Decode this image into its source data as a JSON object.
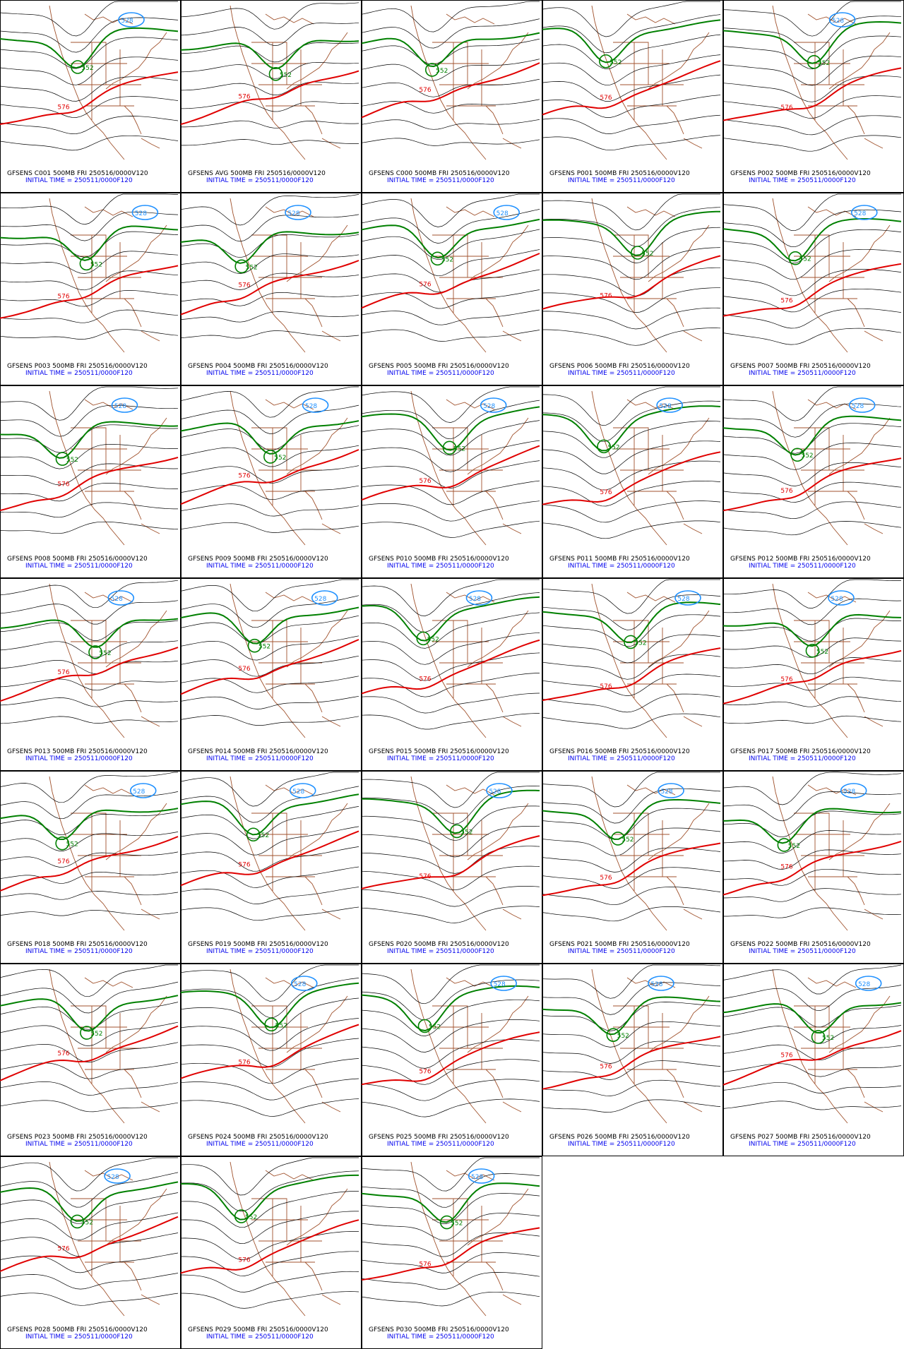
{
  "panels": [
    {
      "title": "GFSENS C001 500MB FRI 250516/0000V120",
      "initial": "INITIAL TIME = 250511/0000F120",
      "contour_labels": [
        "552",
        "576",
        "528"
      ]
    },
    {
      "title": "GFSENS AVG 500MB FRI 250516/0000V120",
      "initial": "INITIAL TIME = 250511/0000F120",
      "contour_labels": [
        "552",
        "576"
      ]
    },
    {
      "title": "GFSENS C000 500MB FRI 250516/0000V120",
      "initial": "INITIAL TIME = 250511/0000F120",
      "contour_labels": [
        "552",
        "576"
      ]
    },
    {
      "title": "GFSENS P001 500MB FRI 250516/0000V120",
      "initial": "INITIAL TIME = 250511/0000F120",
      "contour_labels": [
        "552",
        "576"
      ]
    },
    {
      "title": "GFSENS P002 500MB FRI 250516/0000V120",
      "initial": "INITIAL TIME = 250511/0000F120",
      "contour_labels": [
        "552",
        "576",
        "528"
      ]
    },
    {
      "title": "GFSENS P003 500MB FRI 250516/0000V120",
      "initial": "INITIAL TIME = 250511/0000F120",
      "contour_labels": [
        "552",
        "576",
        "528"
      ]
    },
    {
      "title": "GFSENS P004 500MB FRI 250516/0000V120",
      "initial": "INITIAL TIME = 250511/0000F120",
      "contour_labels": [
        "552",
        "576",
        "528"
      ]
    },
    {
      "title": "GFSENS P005 500MB FRI 250516/0000V120",
      "initial": "INITIAL TIME = 250511/0000F120",
      "contour_labels": [
        "552",
        "576",
        "528"
      ]
    },
    {
      "title": "GFSENS P006 500MB FRI 250516/0000V120",
      "initial": "INITIAL TIME = 250511/0000F120",
      "contour_labels": [
        "552",
        "576"
      ]
    },
    {
      "title": "GFSENS P007 500MB FRI 250516/0000V120",
      "initial": "INITIAL TIME = 250511/0000F120",
      "contour_labels": [
        "552",
        "576",
        "528"
      ]
    },
    {
      "title": "GFSENS P008 500MB FRI 250516/0000V120",
      "initial": "INITIAL TIME = 250511/0000F120",
      "contour_labels": [
        "552",
        "576",
        "528"
      ]
    },
    {
      "title": "GFSENS P009 500MB FRI 250516/0000V120",
      "initial": "INITIAL TIME = 250511/0000F120",
      "contour_labels": [
        "552",
        "576",
        "528"
      ]
    },
    {
      "title": "GFSENS P010 500MB FRI 250516/0000V120",
      "initial": "INITIAL TIME = 250511/0000F120",
      "contour_labels": [
        "552",
        "576",
        "528"
      ]
    },
    {
      "title": "GFSENS P011 500MB FRI 250516/0000V120",
      "initial": "INITIAL TIME = 250511/0000F120",
      "contour_labels": [
        "552",
        "576",
        "528"
      ]
    },
    {
      "title": "GFSENS P012 500MB FRI 250516/0000V120",
      "initial": "INITIAL TIME = 250511/0000F120",
      "contour_labels": [
        "552",
        "576",
        "528"
      ]
    },
    {
      "title": "GFSENS P013 500MB FRI 250516/0000V120",
      "initial": "INITIAL TIME = 250511/0000F120",
      "contour_labels": [
        "552",
        "576",
        "528"
      ]
    },
    {
      "title": "GFSENS P014 500MB FRI 250516/0000V120",
      "initial": "INITIAL TIME = 250511/0000F120",
      "contour_labels": [
        "552",
        "576",
        "528"
      ]
    },
    {
      "title": "GFSENS P015 500MB FRI 250516/0000V120",
      "initial": "INITIAL TIME = 250511/0000F120",
      "contour_labels": [
        "552",
        "576",
        "528"
      ]
    },
    {
      "title": "GFSENS P016 500MB FRI 250516/0000V120",
      "initial": "INITIAL TIME = 250511/0000F120",
      "contour_labels": [
        "552",
        "576",
        "528"
      ]
    },
    {
      "title": "GFSENS P017 500MB FRI 250516/0000V120",
      "initial": "INITIAL TIME = 250511/0000F120",
      "contour_labels": [
        "552",
        "576",
        "528"
      ]
    },
    {
      "title": "GFSENS P018 500MB FRI 250516/0000V120",
      "initial": "INITIAL TIME = 250511/0000F120",
      "contour_labels": [
        "552",
        "576",
        "528"
      ]
    },
    {
      "title": "GFSENS P019 500MB FRI 250516/0000V120",
      "initial": "INITIAL TIME = 250511/0000F120",
      "contour_labels": [
        "552",
        "576",
        "528"
      ]
    },
    {
      "title": "GFSENS P020 500MB FRI 250516/0000V120",
      "initial": "INITIAL TIME = 250511/0000F120",
      "contour_labels": [
        "552",
        "576",
        "528"
      ]
    },
    {
      "title": "GFSENS P021 500MB FRI 250516/0000V120",
      "initial": "INITIAL TIME = 250511/0000F120",
      "contour_labels": [
        "552",
        "576",
        "528"
      ]
    },
    {
      "title": "GFSENS P022 500MB FRI 250516/0000V120",
      "initial": "INITIAL TIME = 250511/0000F120",
      "contour_labels": [
        "552",
        "576",
        "528"
      ]
    },
    {
      "title": "GFSENS P023 500MB FRI 250516/0000V120",
      "initial": "INITIAL TIME = 250511/0000F120",
      "contour_labels": [
        "552",
        "576"
      ]
    },
    {
      "title": "GFSENS P024 500MB FRI 250516/0000V120",
      "initial": "INITIAL TIME = 250511/0000F120",
      "contour_labels": [
        "552",
        "576",
        "528"
      ]
    },
    {
      "title": "GFSENS P025 500MB FRI 250516/0000V120",
      "initial": "INITIAL TIME = 250511/0000F120",
      "contour_labels": [
        "552",
        "576",
        "528"
      ]
    },
    {
      "title": "GFSENS P026 500MB FRI 250516/0000V120",
      "initial": "INITIAL TIME = 250511/0000F120",
      "contour_labels": [
        "552",
        "576",
        "528"
      ]
    },
    {
      "title": "GFSENS P027 500MB FRI 250516/0000V120",
      "initial": "INITIAL TIME = 250511/0000F120",
      "contour_labels": [
        "552",
        "576",
        "528"
      ]
    },
    {
      "title": "GFSENS P028 500MB FRI 250516/0000V120",
      "initial": "INITIAL TIME = 250511/0000F120",
      "contour_labels": [
        "552",
        "576",
        "528"
      ]
    },
    {
      "title": "GFSENS P029 500MB FRI 250516/0000V120",
      "initial": "INITIAL TIME = 250511/0000F120",
      "contour_labels": [
        "552",
        "576"
      ]
    },
    {
      "title": "GFSENS P030 500MB FRI 250516/0000V120",
      "initial": "INITIAL TIME = 250511/0000F120",
      "contour_labels": [
        "552",
        "576",
        "528"
      ]
    }
  ]
}
